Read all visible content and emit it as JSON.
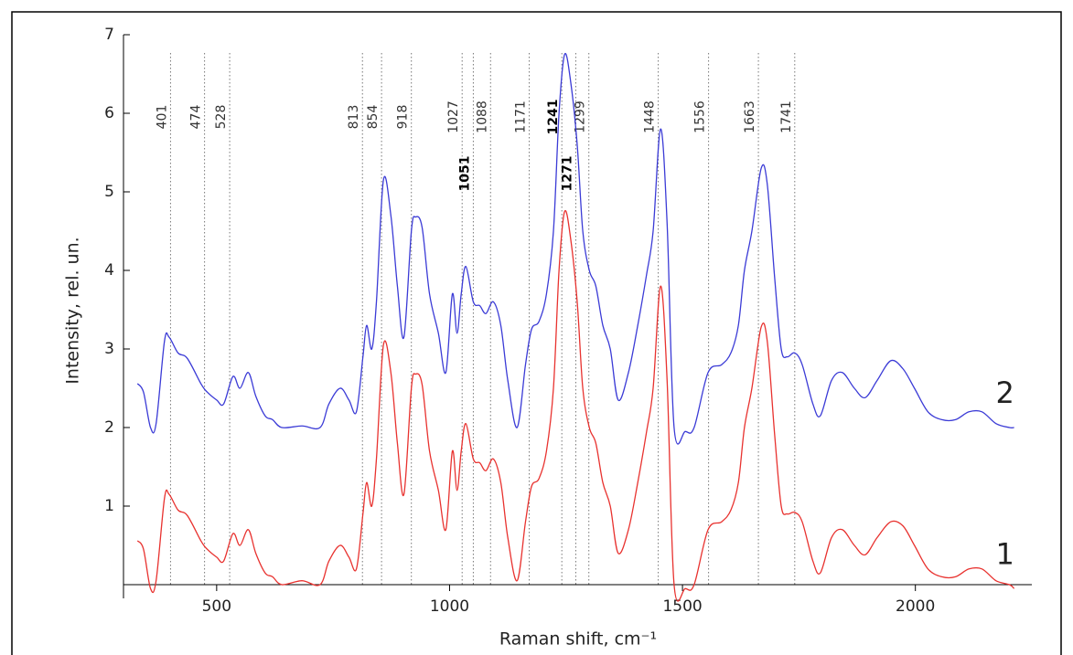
{
  "chart_data": {
    "type": "line",
    "ylabel": "Intensity, rel. un.",
    "xlabel": "Raman shift, cm⁻¹",
    "xlim": [
      300,
      2250
    ],
    "ylim": [
      0,
      7
    ],
    "xticks": [
      500,
      1000,
      1500,
      2000
    ],
    "yticks": [
      1,
      2,
      3,
      4,
      5,
      6,
      7
    ],
    "peaks": [
      401,
      474,
      528,
      813,
      854,
      918,
      1027,
      1051,
      1088,
      1171,
      1241,
      1271,
      1299,
      1448,
      1556,
      1663,
      1741
    ],
    "peak_bold": [
      false,
      false,
      false,
      false,
      false,
      false,
      false,
      true,
      false,
      false,
      true,
      true,
      false,
      false,
      false,
      false,
      false
    ],
    "x": [
      330,
      343,
      358,
      370,
      388,
      398,
      417,
      437,
      467,
      480,
      500,
      515,
      535,
      550,
      568,
      584,
      604,
      620,
      640,
      683,
      722,
      741,
      765,
      784,
      800,
      814,
      822,
      833,
      843,
      858,
      874,
      888,
      902,
      918,
      927,
      941,
      957,
      976,
      992,
      1006,
      1016,
      1025,
      1035,
      1051,
      1065,
      1078,
      1094,
      1110,
      1125,
      1145,
      1163,
      1176,
      1192,
      1208,
      1223,
      1235,
      1247,
      1260,
      1274,
      1286,
      1300,
      1314,
      1329,
      1345,
      1362,
      1384,
      1404,
      1423,
      1437,
      1453,
      1467,
      1482,
      1506,
      1525,
      1555,
      1584,
      1604,
      1620,
      1633,
      1649,
      1669,
      1682,
      1698,
      1712,
      1725,
      1741,
      1757,
      1780,
      1796,
      1820,
      1843,
      1869,
      1892,
      1918,
      1947,
      1973,
      1998,
      2027,
      2057,
      2086,
      2115,
      2143,
      2173,
      2202,
      2212
    ],
    "series": [
      {
        "name": "2",
        "color": "#3b3bd6",
        "values": [
          2.56,
          2.45,
          2.0,
          2.05,
          3.1,
          3.15,
          2.95,
          2.88,
          2.55,
          2.45,
          2.35,
          2.3,
          2.65,
          2.5,
          2.7,
          2.4,
          2.15,
          2.1,
          2.0,
          2.02,
          2.0,
          2.3,
          2.5,
          2.35,
          2.2,
          2.9,
          3.3,
          3.0,
          3.6,
          5.15,
          4.7,
          3.8,
          3.15,
          4.5,
          4.68,
          4.55,
          3.7,
          3.2,
          2.7,
          3.7,
          3.2,
          3.7,
          4.05,
          3.6,
          3.55,
          3.45,
          3.6,
          3.3,
          2.6,
          2.0,
          2.8,
          3.25,
          3.35,
          3.7,
          4.5,
          6.0,
          6.75,
          6.4,
          5.6,
          4.5,
          4.0,
          3.8,
          3.3,
          3.0,
          2.35,
          2.7,
          3.3,
          3.95,
          4.5,
          5.8,
          4.6,
          2.0,
          1.95,
          2.0,
          2.7,
          2.8,
          2.95,
          3.3,
          4.0,
          4.5,
          5.3,
          5.1,
          3.9,
          3.0,
          2.9,
          2.95,
          2.8,
          2.3,
          2.15,
          2.6,
          2.7,
          2.5,
          2.38,
          2.6,
          2.85,
          2.75,
          2.5,
          2.2,
          2.1,
          2.1,
          2.2,
          2.2,
          2.05,
          2.0,
          2.0
        ]
      },
      {
        "name": "1",
        "color": "#e8322f",
        "values": [
          0.56,
          0.45,
          -0.05,
          0.05,
          1.1,
          1.15,
          0.95,
          0.88,
          0.55,
          0.45,
          0.35,
          0.3,
          0.65,
          0.5,
          0.7,
          0.4,
          0.15,
          0.1,
          0.0,
          0.05,
          0.0,
          0.3,
          0.5,
          0.35,
          0.2,
          0.9,
          1.3,
          1.0,
          1.6,
          3.05,
          2.7,
          1.8,
          1.15,
          2.5,
          2.68,
          2.55,
          1.7,
          1.2,
          0.7,
          1.7,
          1.2,
          1.7,
          2.05,
          1.6,
          1.55,
          1.45,
          1.6,
          1.3,
          0.6,
          0.05,
          0.8,
          1.25,
          1.35,
          1.7,
          2.5,
          4.0,
          4.75,
          4.4,
          3.6,
          2.5,
          2.0,
          1.8,
          1.3,
          1.0,
          0.4,
          0.7,
          1.3,
          1.95,
          2.5,
          3.8,
          2.6,
          0.0,
          -0.05,
          0.0,
          0.7,
          0.8,
          0.95,
          1.3,
          2.0,
          2.5,
          3.28,
          3.1,
          1.9,
          1.0,
          0.9,
          0.92,
          0.8,
          0.3,
          0.15,
          0.6,
          0.7,
          0.5,
          0.38,
          0.6,
          0.8,
          0.75,
          0.5,
          0.2,
          0.1,
          0.1,
          0.2,
          0.2,
          0.05,
          0.0,
          -0.05
        ]
      }
    ]
  }
}
